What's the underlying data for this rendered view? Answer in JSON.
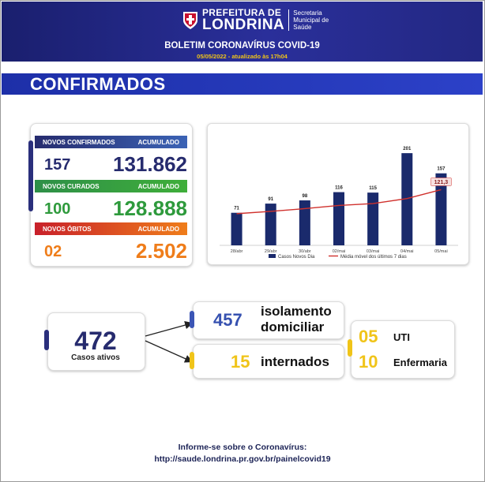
{
  "header": {
    "pref_line1": "PREFEITURA DE",
    "pref_line2": "LONDRINA",
    "sec_line1": "Secretaria",
    "sec_line2": "Municipal de",
    "sec_line3": "Saúde",
    "title": "BOLETIM CORONAVÍRUS COVID-19",
    "date": "05/05/2022 - atualizado às 17h04"
  },
  "section_title": "CONFIRMADOS",
  "summary": {
    "confirmed": {
      "label": "NOVOS CONFIRMADOS",
      "acc_label": "ACUMULADO",
      "new": "157",
      "total": "131.862",
      "color": "#262b6e"
    },
    "recovered": {
      "label": "NOVOS CURADOS",
      "acc_label": "ACUMULADO",
      "new": "100",
      "total": "128.888",
      "color": "#2e9a3c"
    },
    "deaths": {
      "label": "NOVOS ÓBITOS",
      "acc_label": "ACUMULADO",
      "new": "02",
      "total": "2.502",
      "color": "#ef7d1a"
    }
  },
  "chart_data": {
    "type": "bar",
    "categories": [
      "28/abr",
      "29/abr",
      "30/abr",
      "02/mai",
      "03/mai",
      "04/mai",
      "05/mai"
    ],
    "series": [
      {
        "name": "Casos Novos Dia",
        "type": "bar",
        "values": [
          71,
          91,
          98,
          116,
          115,
          201,
          157
        ],
        "color": "#1a2a6c"
      },
      {
        "name": "Média móvel dos últimos 7 dias",
        "type": "line",
        "values": [
          69,
          74,
          80,
          87,
          91,
          102,
          121.3
        ],
        "color": "#d0312d"
      }
    ],
    "data_labels": [
      "71",
      "91",
      "98",
      "116",
      "115",
      "201",
      "157"
    ],
    "highlight_label": "121,3",
    "ylim": [
      0,
      215
    ],
    "grid": false,
    "legend": "bottom"
  },
  "active": {
    "value": "472",
    "label": "Casos ativos"
  },
  "isolation": {
    "value": "457",
    "label_line1": "isolamento",
    "label_line2": "domiciliar"
  },
  "hospitalized": {
    "value": "15",
    "label": "internados"
  },
  "uti": {
    "value": "05",
    "label": "UTI"
  },
  "ward": {
    "value": "10",
    "label": "Enfermaria"
  },
  "footer": {
    "line1": "Informe-se sobre o Coronavírus:",
    "line2": "http://saude.londrina.pr.gov.br/painelcovid19"
  }
}
